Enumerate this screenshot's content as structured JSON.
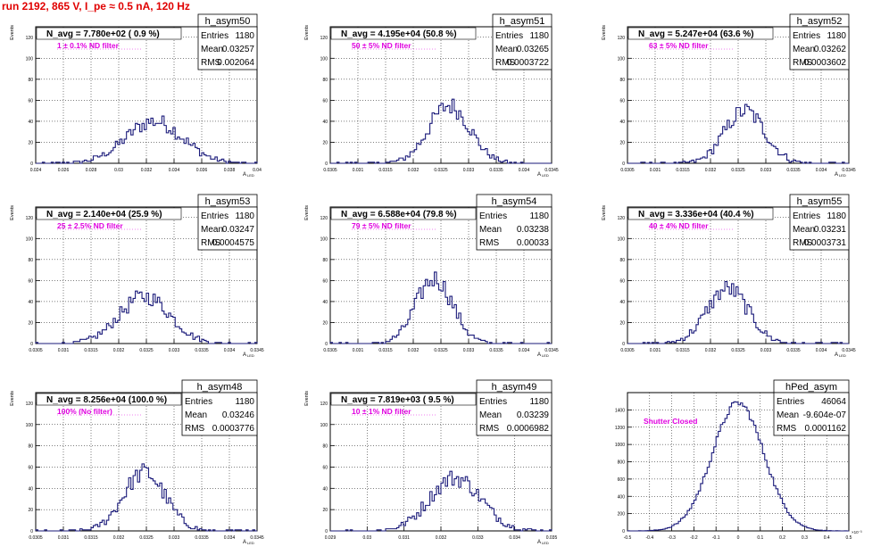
{
  "page": {
    "title": "run 2192,   865 V, I_pe ≈ 0.5 nA, 120 Hz"
  },
  "chart_data": [
    {
      "type": "bar",
      "histname": "h_asym50",
      "navg": "N_avg = 7.780e+02 ( 0.9 %)",
      "filter": "1 ± 0.1% ND filter",
      "stats": {
        "Entries": "1180",
        "Mean": "0.03257",
        "RMS": "0.002064"
      },
      "ylabel": "Events",
      "xlabel": "A",
      "xlabel_sub": "LED",
      "xlim": [
        0.024,
        0.04
      ],
      "ylim": [
        0,
        130
      ],
      "yticks": [
        0,
        20,
        40,
        60,
        80,
        100,
        120
      ],
      "xticks": [
        "0.024",
        "0.026",
        "0.028",
        "0.03",
        "0.032",
        "0.034",
        "0.036",
        "0.038",
        "0.04"
      ],
      "mean": 0.03257,
      "rms": 0.002064,
      "peak": 40,
      "entries": 1180
    },
    {
      "type": "bar",
      "histname": "h_asym51",
      "navg": "N_avg = 4.195e+04 (50.8 %)",
      "filter": "50 ± 5% ND filter",
      "stats": {
        "Entries": "1180",
        "Mean": "0.03265",
        "RMS": "0.0003722"
      },
      "ylabel": "Events",
      "xlabel": "A",
      "xlabel_sub": "LED",
      "xlim": [
        0.0305,
        0.0345
      ],
      "ylim": [
        0,
        130
      ],
      "yticks": [
        0,
        20,
        40,
        60,
        80,
        100,
        120
      ],
      "xticks": [
        "0.0305",
        "0.031",
        "0.0315",
        "0.032",
        "0.0325",
        "0.033",
        "0.0335",
        "0.034",
        "0.0345"
      ],
      "mean": 0.03265,
      "rms": 0.0003722,
      "peak": 55,
      "entries": 1180
    },
    {
      "type": "bar",
      "histname": "h_asym52",
      "navg": "N_avg = 5.247e+04 (63.6 %)",
      "filter": "63 ± 5% ND filter",
      "stats": {
        "Entries": "1180",
        "Mean": "0.03262",
        "RMS": "0.0003602"
      },
      "ylabel": "Events",
      "xlabel": "A",
      "xlabel_sub": "LED",
      "xlim": [
        0.0305,
        0.0345
      ],
      "ylim": [
        0,
        130
      ],
      "yticks": [
        0,
        20,
        40,
        60,
        80,
        100,
        120
      ],
      "xticks": [
        "0.0305",
        "0.031",
        "0.0315",
        "0.032",
        "0.0325",
        "0.033",
        "0.0335",
        "0.034",
        "0.0345"
      ],
      "mean": 0.03262,
      "rms": 0.0003602,
      "peak": 50,
      "entries": 1180
    },
    {
      "type": "bar",
      "histname": "h_asym53",
      "navg": "N_avg = 2.140e+04 (25.9 %)",
      "filter": "25 ± 2.5% ND filter",
      "stats": {
        "Entries": "1180",
        "Mean": "0.03247",
        "RMS": "0.0004575"
      },
      "ylabel": "Events",
      "xlabel": "A",
      "xlabel_sub": "LED",
      "xlim": [
        0.0305,
        0.0345
      ],
      "ylim": [
        0,
        130
      ],
      "yticks": [
        0,
        20,
        40,
        60,
        80,
        100,
        120
      ],
      "xticks": [
        "0.0305",
        "0.031",
        "0.0315",
        "0.032",
        "0.0325",
        "0.033",
        "0.0335",
        "0.034",
        "0.0345"
      ],
      "mean": 0.03247,
      "rms": 0.0004575,
      "peak": 45,
      "entries": 1180
    },
    {
      "type": "bar",
      "histname": "h_asym54",
      "navg": "N_avg = 6.588e+04 (79.8 %)",
      "filter": "79 ± 5% ND filter",
      "stats": {
        "Entries": "1180",
        "Mean": "0.03238",
        "RMS": "0.00033"
      },
      "ylabel": "Events",
      "xlabel": "A",
      "xlabel_sub": "LED",
      "xlim": [
        0.0305,
        0.0345
      ],
      "ylim": [
        0,
        130
      ],
      "yticks": [
        0,
        20,
        40,
        60,
        80,
        100,
        120
      ],
      "xticks": [
        "0.0305",
        "0.031",
        "0.0315",
        "0.032",
        "0.0325",
        "0.033",
        "0.0335",
        "0.034",
        "0.0345"
      ],
      "mean": 0.03238,
      "rms": 0.00033,
      "peak": 62,
      "entries": 1180
    },
    {
      "type": "bar",
      "histname": "h_asym55",
      "navg": "N_avg = 3.336e+04 (40.4 %)",
      "filter": "40 ± 4% ND filter",
      "stats": {
        "Entries": "1180",
        "Mean": "0.03231",
        "RMS": "0.0003731"
      },
      "ylabel": "Events",
      "xlabel": "A",
      "xlabel_sub": "LED",
      "xlim": [
        0.0305,
        0.0345
      ],
      "ylim": [
        0,
        130
      ],
      "yticks": [
        0,
        20,
        40,
        60,
        80,
        100,
        120
      ],
      "xticks": [
        "0.0305",
        "0.031",
        "0.0315",
        "0.032",
        "0.0325",
        "0.033",
        "0.0335",
        "0.034",
        "0.0345"
      ],
      "mean": 0.03231,
      "rms": 0.0003731,
      "peak": 52,
      "entries": 1180
    },
    {
      "type": "bar",
      "histname": "h_asym48",
      "navg": "N_avg = 8.256e+04 (100.0 %)",
      "filter": "100% (No filter)",
      "stats": {
        "Entries": "1180",
        "Mean": "0.03246",
        "RMS": "0.0003776"
      },
      "ylabel": "Events",
      "xlabel": "A",
      "xlabel_sub": "LED",
      "xlim": [
        0.0305,
        0.0345
      ],
      "ylim": [
        0,
        130
      ],
      "yticks": [
        0,
        20,
        40,
        60,
        80,
        100,
        120
      ],
      "xticks": [
        "0.0305",
        "0.031",
        "0.0315",
        "0.032",
        "0.0325",
        "0.033",
        "0.0335",
        "0.034",
        "0.0345"
      ],
      "mean": 0.03246,
      "rms": 0.0003776,
      "peak": 55,
      "entries": 1180
    },
    {
      "type": "bar",
      "histname": "h_asym49",
      "navg": "N_avg = 7.819e+03 ( 9.5 %)",
      "filter": "10 ± 1% ND filter",
      "stats": {
        "Entries": "1180",
        "Mean": "0.03239",
        "RMS": "0.0006982"
      },
      "ylabel": "Events",
      "xlabel": "A",
      "xlabel_sub": "LED",
      "xlim": [
        0.029,
        0.035
      ],
      "ylim": [
        0,
        130
      ],
      "yticks": [
        0,
        20,
        40,
        60,
        80,
        100,
        120
      ],
      "xticks": [
        "0.029",
        "0.03",
        "0.031",
        "0.032",
        "0.033",
        "0.034",
        "0.035"
      ],
      "mean": 0.03239,
      "rms": 0.0006982,
      "peak": 50,
      "entries": 1180
    },
    {
      "type": "bar",
      "histname": "hPed_asym",
      "navg": "",
      "filter": "Shutter Closed",
      "stats": {
        "Entries": "46064",
        "Mean": "-9.604e-07",
        "RMS": "0.0001162"
      },
      "ylabel": "",
      "xlabel": "",
      "xlabel_sub": "",
      "xlim": [
        -0.5,
        0.5
      ],
      "ylim": [
        0,
        1600
      ],
      "yticks": [
        0,
        200,
        400,
        600,
        800,
        1000,
        1200,
        1400
      ],
      "xticks": [
        "-0.5",
        "-0.4",
        "-0.3",
        "-0.2",
        "-0.1",
        "0",
        "0.1",
        "0.2",
        "0.3",
        "0.4",
        "0.5"
      ],
      "xexp": "×10⁻³",
      "mean": 0.0,
      "rms": 0.1162,
      "peak": 1480,
      "entries": 46064
    }
  ]
}
